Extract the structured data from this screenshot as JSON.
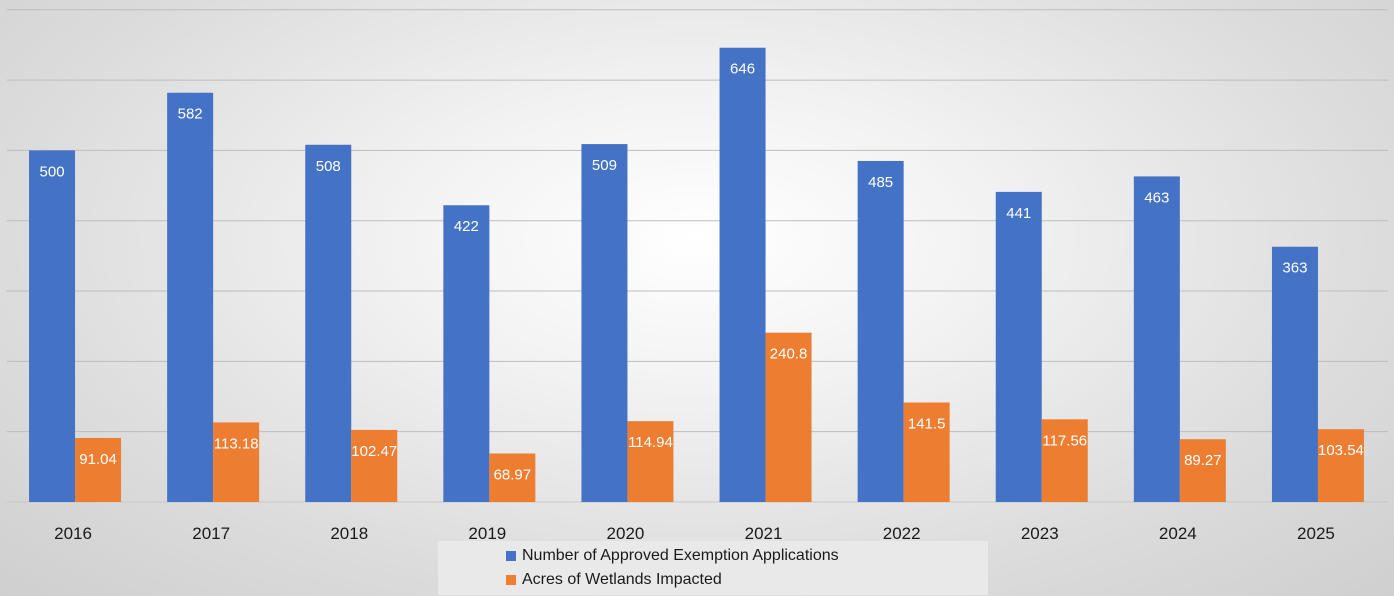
{
  "chart_data": {
    "type": "bar",
    "title": "",
    "xlabel": "",
    "ylabel": "",
    "categories": [
      "2016",
      "2017",
      "2018",
      "2019",
      "2020",
      "2021",
      "2022",
      "2023",
      "2024",
      "2025"
    ],
    "series": [
      {
        "name": "Number of Approved Exemption Applications",
        "color": "#4472C4",
        "values": [
          500,
          582,
          508,
          422,
          509,
          646,
          485,
          441,
          463,
          363
        ],
        "labels": [
          "500",
          "582",
          "508",
          "422",
          "509",
          "646",
          "485",
          "441",
          "463",
          "363"
        ]
      },
      {
        "name": "Acres of Wetlands Impacted",
        "color": "#ED7D31",
        "values": [
          91.04,
          113.18,
          102.47,
          68.97,
          114.94,
          240.8,
          141.5,
          117.56,
          89.27,
          103.54
        ],
        "labels": [
          "91.04",
          "113.18",
          "102.47",
          "68.97",
          "114.94",
          "240.8",
          "141.5",
          "117.56",
          "89.27",
          "103.54"
        ]
      }
    ],
    "ylim": [
      0,
      700
    ],
    "grid": true,
    "legend_position": "bottom"
  }
}
